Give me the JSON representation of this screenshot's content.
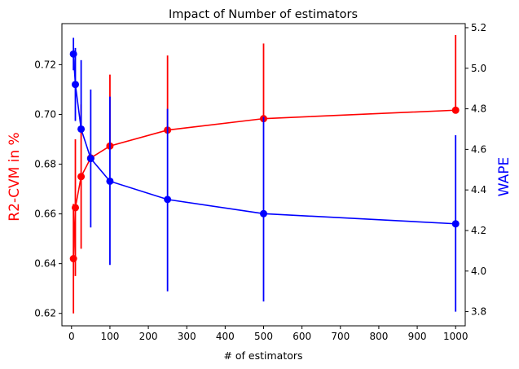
{
  "chart_data": {
    "type": "line",
    "title": "Impact of Number of estimators",
    "xlabel": "# of estimators",
    "xlim": [
      -25,
      1025
    ],
    "xticks": [
      0,
      100,
      200,
      300,
      400,
      500,
      600,
      700,
      800,
      900,
      1000
    ],
    "xtick_labels": [
      "0",
      "100",
      "200",
      "300",
      "400",
      "500",
      "600",
      "700",
      "800",
      "900",
      "1000"
    ],
    "grid": false,
    "x": [
      5,
      10,
      25,
      50,
      100,
      250,
      500,
      1000
    ],
    "left_axis": {
      "label": "R2-CVM in %",
      "color": "#ff0000",
      "ylim": [
        0.615,
        0.7365
      ],
      "ticks": [
        0.62,
        0.64,
        0.66,
        0.68,
        0.7,
        0.72
      ],
      "tick_labels": [
        "0.62",
        "0.64",
        "0.66",
        "0.68",
        "0.70",
        "0.72"
      ]
    },
    "right_axis": {
      "label": "WAPE",
      "color": "#0000ff",
      "ylim": [
        3.73,
        5.22
      ],
      "ticks": [
        3.8,
        4.0,
        4.2,
        4.4,
        4.6,
        4.8,
        5.0,
        5.2
      ],
      "tick_labels": [
        "3.8",
        "4.0",
        "4.2",
        "4.4",
        "4.6",
        "4.8",
        "5.0",
        "5.2"
      ]
    },
    "series": [
      {
        "axis": "left",
        "color": "#ff0000",
        "values": [
          0.642,
          0.6625,
          0.675,
          0.6825,
          0.6873,
          0.6937,
          0.6983,
          0.7017
        ],
        "err_low": [
          0.62,
          0.635,
          0.646,
          0.682,
          0.6873,
          0.6937,
          0.6983,
          0.7017
        ],
        "err_high": [
          0.664,
          0.69,
          0.704,
          0.6825,
          0.716,
          0.7237,
          0.7285,
          0.7319
        ]
      },
      {
        "axis": "right",
        "color": "#0000ff",
        "values": [
          5.07,
          4.92,
          4.7,
          4.555,
          4.443,
          4.353,
          4.283,
          4.233
        ],
        "err_low": [
          4.99,
          4.74,
          4.7,
          4.215,
          4.03,
          3.9,
          3.85,
          3.8
        ],
        "err_high": [
          5.15,
          5.1,
          5.04,
          4.895,
          4.86,
          4.8,
          4.76,
          4.67
        ]
      }
    ]
  }
}
